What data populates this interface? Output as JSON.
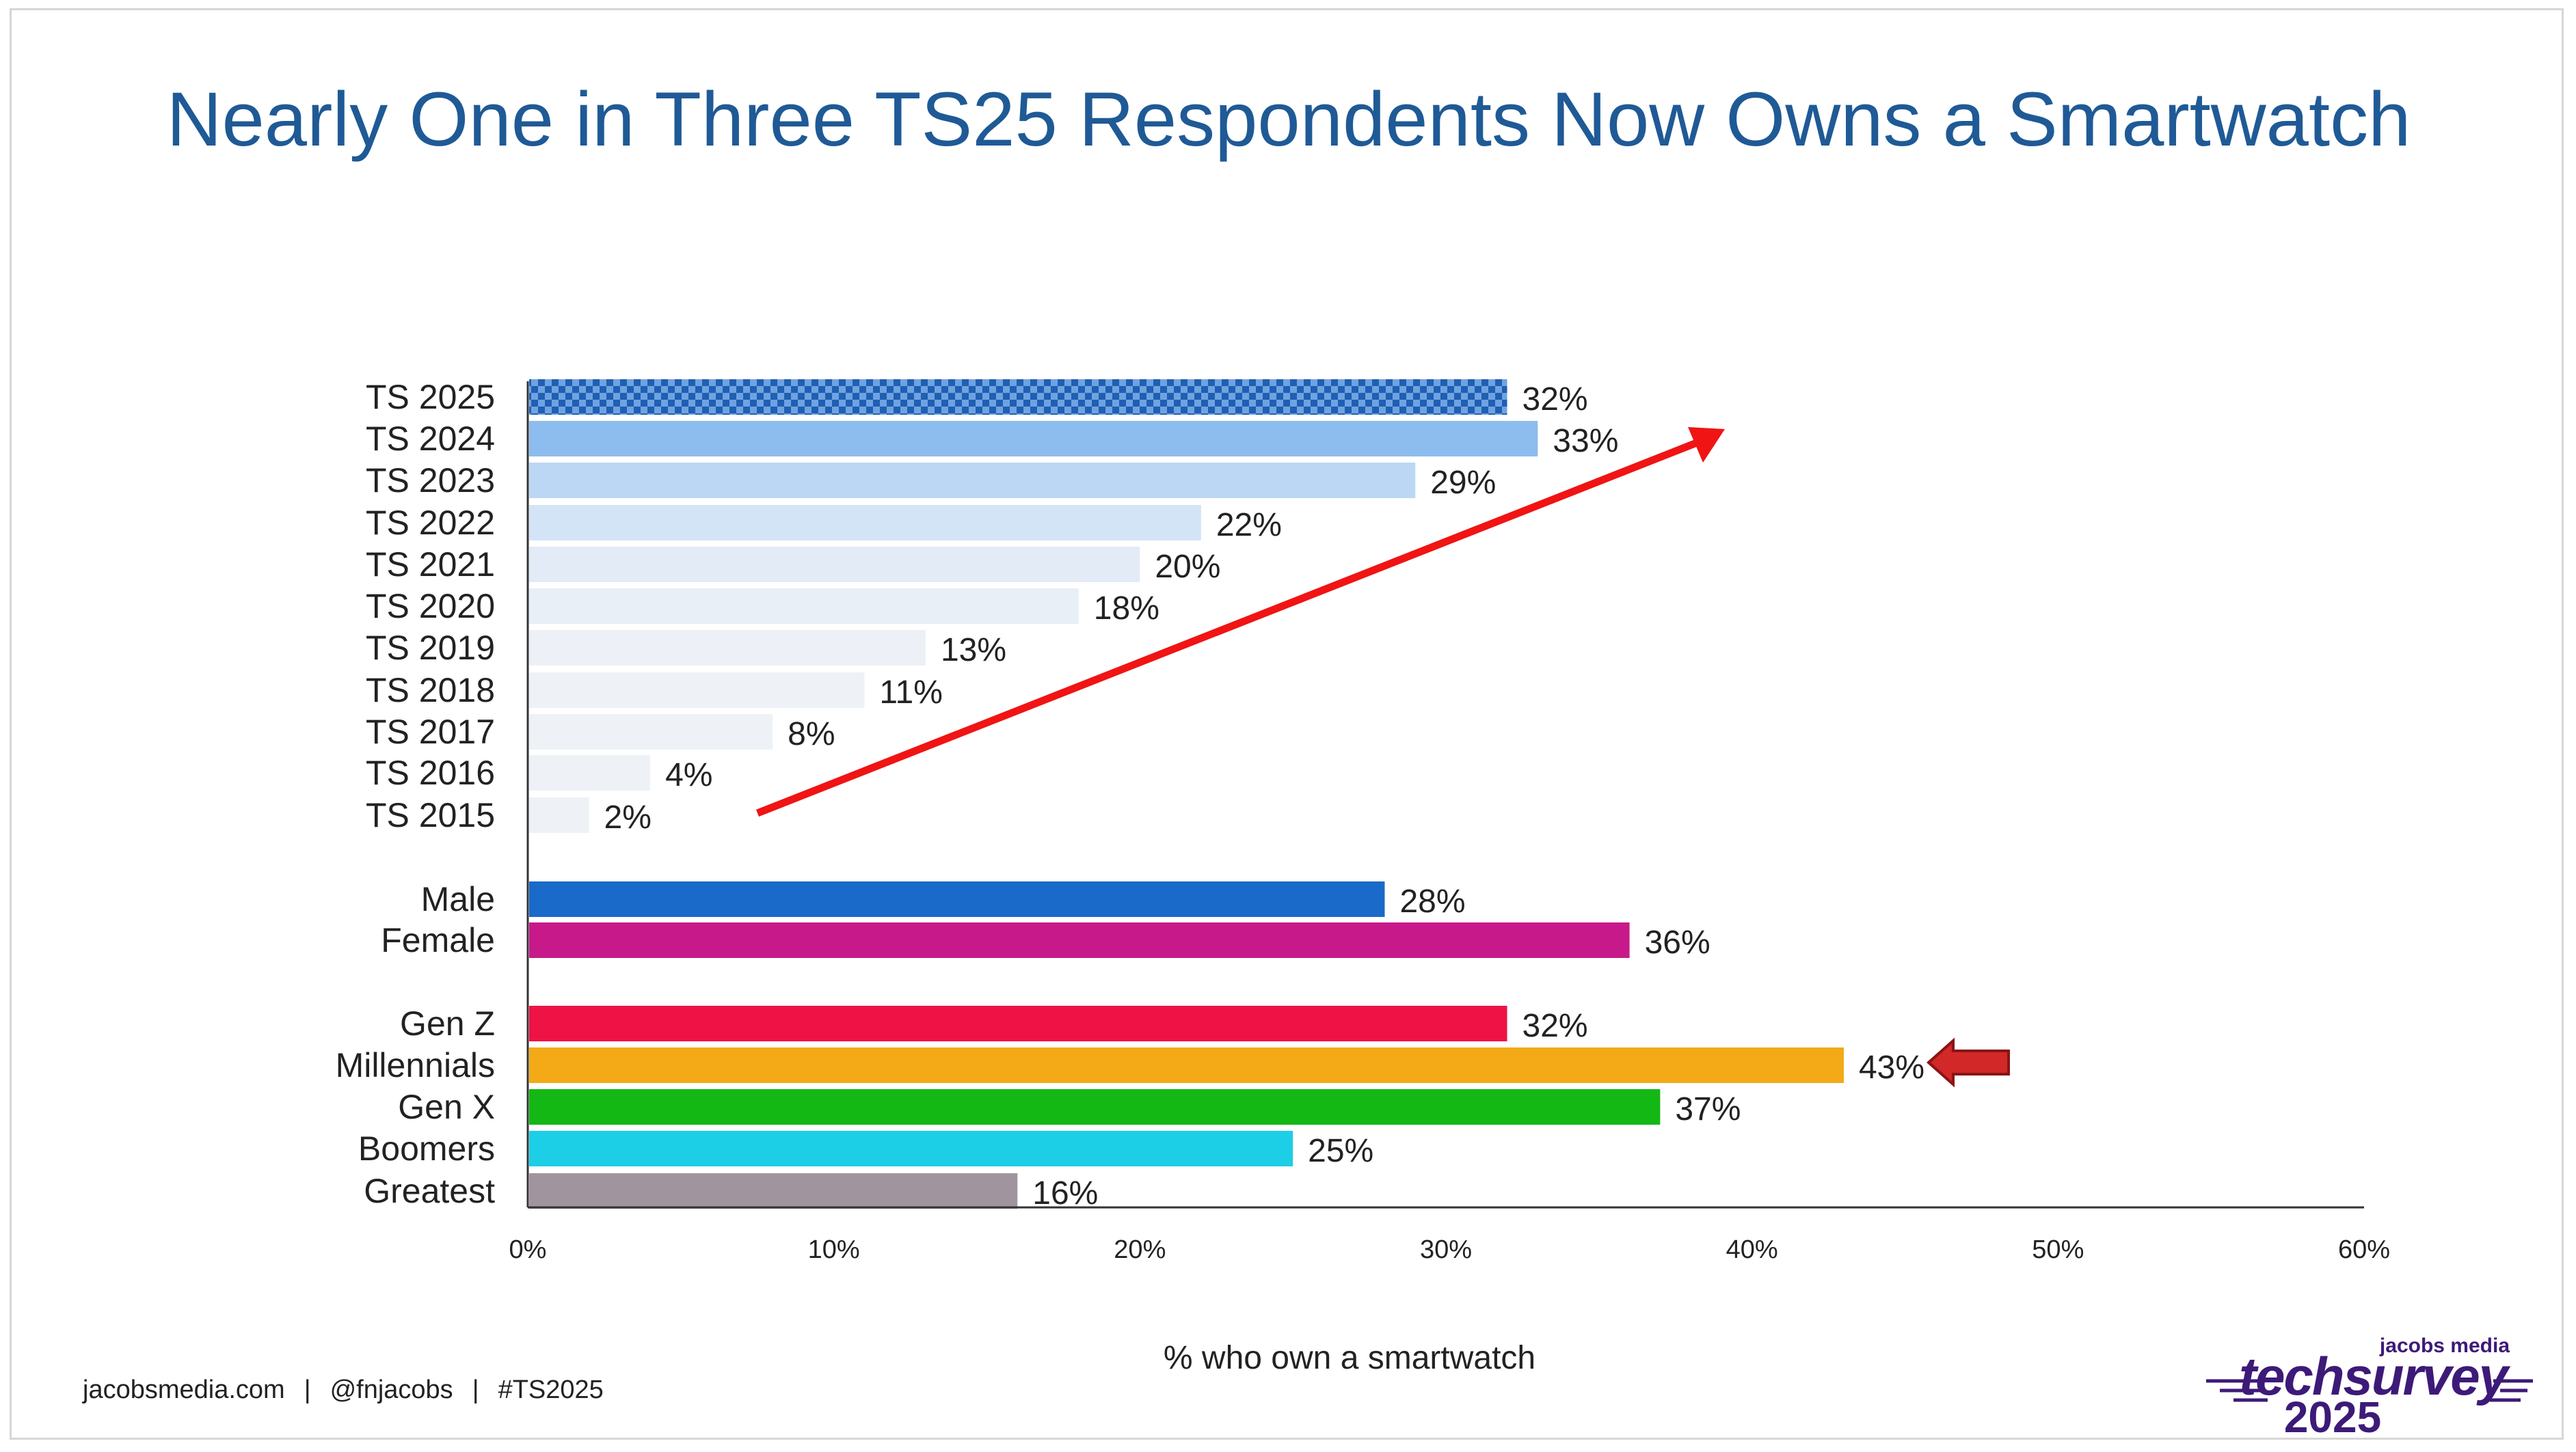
{
  "title": "Nearly One in Three TS25 Respondents Now Owns a Smartwatch",
  "footer": {
    "website": "jacobsmedia.com",
    "handle": "@fnjacobs",
    "hashtag": "#TS2025",
    "separator": "|"
  },
  "logo": {
    "brand": "jacobs media",
    "name": "techsurvey",
    "year": "2025",
    "color": "#3d1a78"
  },
  "chart_data": {
    "type": "bar",
    "orientation": "horizontal",
    "title": "Nearly One in Three TS25 Respondents Now Owns a Smartwatch",
    "xlabel": "% who own a smartwatch",
    "ylabel": "",
    "xlim": [
      0,
      60
    ],
    "xticks": [
      "0%",
      "10%",
      "20%",
      "30%",
      "40%",
      "50%",
      "60%"
    ],
    "grid": false,
    "value_suffix": "%",
    "categories": [
      "TS 2025",
      "TS 2024",
      "TS 2023",
      "TS 2022",
      "TS 2021",
      "TS 2020",
      "TS 2019",
      "TS 2018",
      "TS 2017",
      "TS 2016",
      "TS 2015",
      "Male",
      "Female",
      "Gen Z",
      "Millennials",
      "Gen X",
      "Boomers",
      "Greatest"
    ],
    "values": [
      32,
      33,
      29,
      22,
      20,
      18,
      13,
      11,
      8,
      4,
      2,
      28,
      36,
      32,
      43,
      37,
      25,
      16
    ],
    "groups": [
      "year",
      "year",
      "year",
      "year",
      "year",
      "year",
      "year",
      "year",
      "year",
      "year",
      "year",
      "gender",
      "gender",
      "generation",
      "generation",
      "generation",
      "generation",
      "generation"
    ],
    "colors": [
      "#1f5fb4",
      "#8dbcee",
      "#bcd7f4",
      "#d4e4f7",
      "#e2ebf6",
      "#e9eff7",
      "#edf1f7",
      "#eef2f7",
      "#eef2f7",
      "#eef2f7",
      "#eef2f7",
      "#1a6ac9",
      "#c8198a",
      "#ee1245",
      "#f3aa16",
      "#14b814",
      "#1ccfe6",
      "#a0959f"
    ],
    "patterned_category": "TS 2025",
    "annotations": [
      {
        "type": "trend-arrow",
        "description": "red upward arrow across TS year bars",
        "color": "#f01414"
      },
      {
        "type": "highlight-arrow",
        "points_to": "Millennials",
        "color": "#d22828"
      }
    ]
  }
}
